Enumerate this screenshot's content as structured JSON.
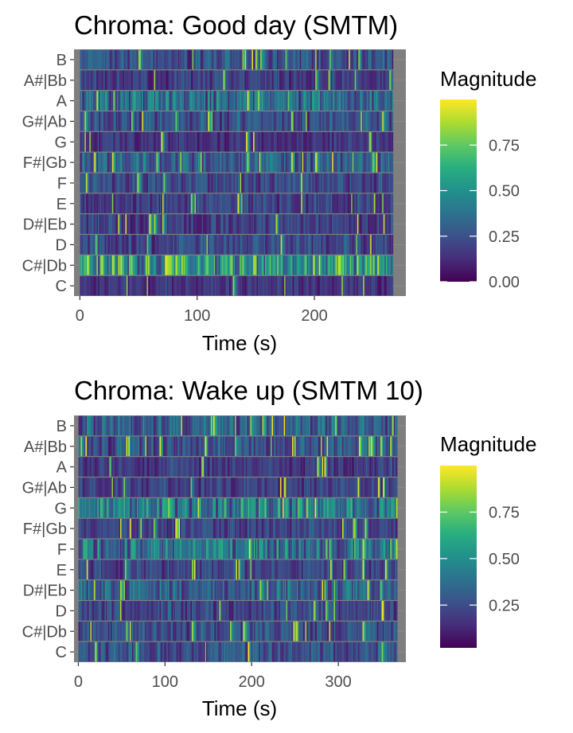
{
  "chart_data": [
    {
      "type": "heatmap",
      "title": "Chroma: Good day (SMTM)",
      "xlabel": "Time (s)",
      "ylabel": "",
      "xlim": [
        -5,
        278
      ],
      "x_ticks": [
        0,
        100,
        200
      ],
      "x_tick_labels": [
        "0",
        "100",
        "200"
      ],
      "y_categories": [
        "C",
        "C#|Db",
        "D",
        "D#|Eb",
        "E",
        "F",
        "F#|Gb",
        "G",
        "G#|Ab",
        "A",
        "A#|Bb",
        "B"
      ],
      "data_x_range": [
        0,
        267
      ],
      "legend": {
        "title": "Magnitude",
        "ticks": [
          0.0,
          0.25,
          0.5,
          0.75
        ],
        "tick_labels": [
          "0.00",
          "0.25",
          "0.50",
          "0.75"
        ],
        "range": [
          0,
          1
        ],
        "colormap": "viridis",
        "placement": "right"
      },
      "pitch_mean_magnitude": [
        0.15,
        0.55,
        0.22,
        0.2,
        0.2,
        0.22,
        0.3,
        0.15,
        0.25,
        0.35,
        0.18,
        0.25
      ],
      "background_color": "#7f7f7f"
    },
    {
      "type": "heatmap",
      "title": "Chroma: Wake up (SMTM 10)",
      "xlabel": "Time (s)",
      "ylabel": "",
      "xlim": [
        -5,
        378
      ],
      "x_ticks": [
        0,
        100,
        200,
        300
      ],
      "x_tick_labels": [
        "0",
        "100",
        "200",
        "300"
      ],
      "y_categories": [
        "C",
        "C#|Db",
        "D",
        "D#|Eb",
        "E",
        "F",
        "F#|Gb",
        "G",
        "G#|Ab",
        "A",
        "A#|Bb",
        "B"
      ],
      "data_x_range": [
        0,
        368
      ],
      "legend": {
        "title": "Magnitude",
        "ticks": [
          0.25,
          0.5,
          0.75
        ],
        "tick_labels": [
          "0.25",
          "0.50",
          "0.75"
        ],
        "range": [
          0.02,
          1
        ],
        "colormap": "viridis",
        "placement": "right"
      },
      "pitch_mean_magnitude": [
        0.25,
        0.25,
        0.22,
        0.3,
        0.2,
        0.38,
        0.2,
        0.4,
        0.2,
        0.18,
        0.25,
        0.3
      ],
      "background_color": "#7f7f7f"
    }
  ]
}
